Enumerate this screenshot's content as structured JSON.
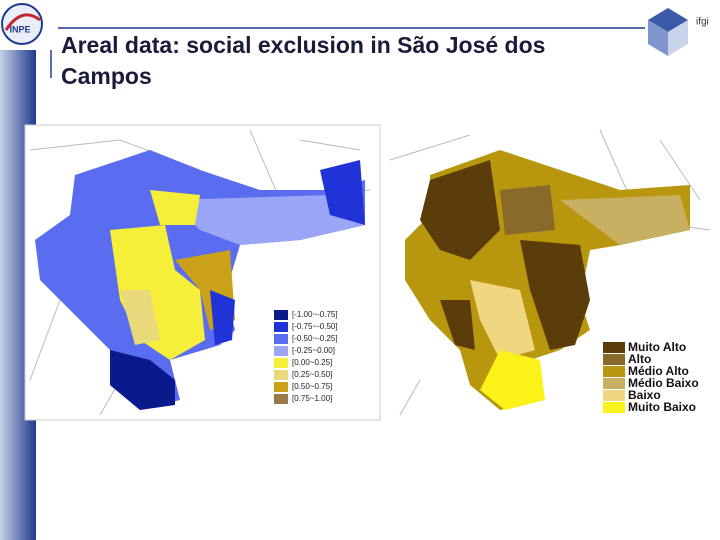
{
  "logo": {
    "left": "INPE",
    "right": "ifgi"
  },
  "title": "Areal data: social exclusion in São José dos Campos",
  "title_lines": [
    "Areal data: social exclusion in São José dos",
    "Campos"
  ],
  "map_left": {
    "legend": [
      {
        "label": "[-1.00~-0.75]",
        "color": "#0a1a8c"
      },
      {
        "label": "[-0.75~-0.50]",
        "color": "#1f33d6"
      },
      {
        "label": "[-0.50~-0.25]",
        "color": "#5a6cf0"
      },
      {
        "label": "[-0.25~0.00]",
        "color": "#9aa6f5"
      },
      {
        "label": "[0.00~0.25]",
        "color": "#f5ef3a"
      },
      {
        "label": "[0.25~0.50]",
        "color": "#ead97a"
      },
      {
        "label": "[0.50~0.75]",
        "color": "#c9a21a"
      },
      {
        "label": "[0.75~1.00]",
        "color": "#9a7a4a"
      }
    ]
  },
  "map_right": {
    "legend": [
      {
        "label": "Muito Alto",
        "color": "#5a3d0a"
      },
      {
        "label": "Alto",
        "color": "#8a6a2a"
      },
      {
        "label": "Médio Alto",
        "color": "#b8960e"
      },
      {
        "label": "Médio Baixo",
        "color": "#c8b062"
      },
      {
        "label": "Baixo",
        "color": "#efd680"
      },
      {
        "label": "Muito Baixo",
        "color": "#fbf21a"
      }
    ]
  }
}
